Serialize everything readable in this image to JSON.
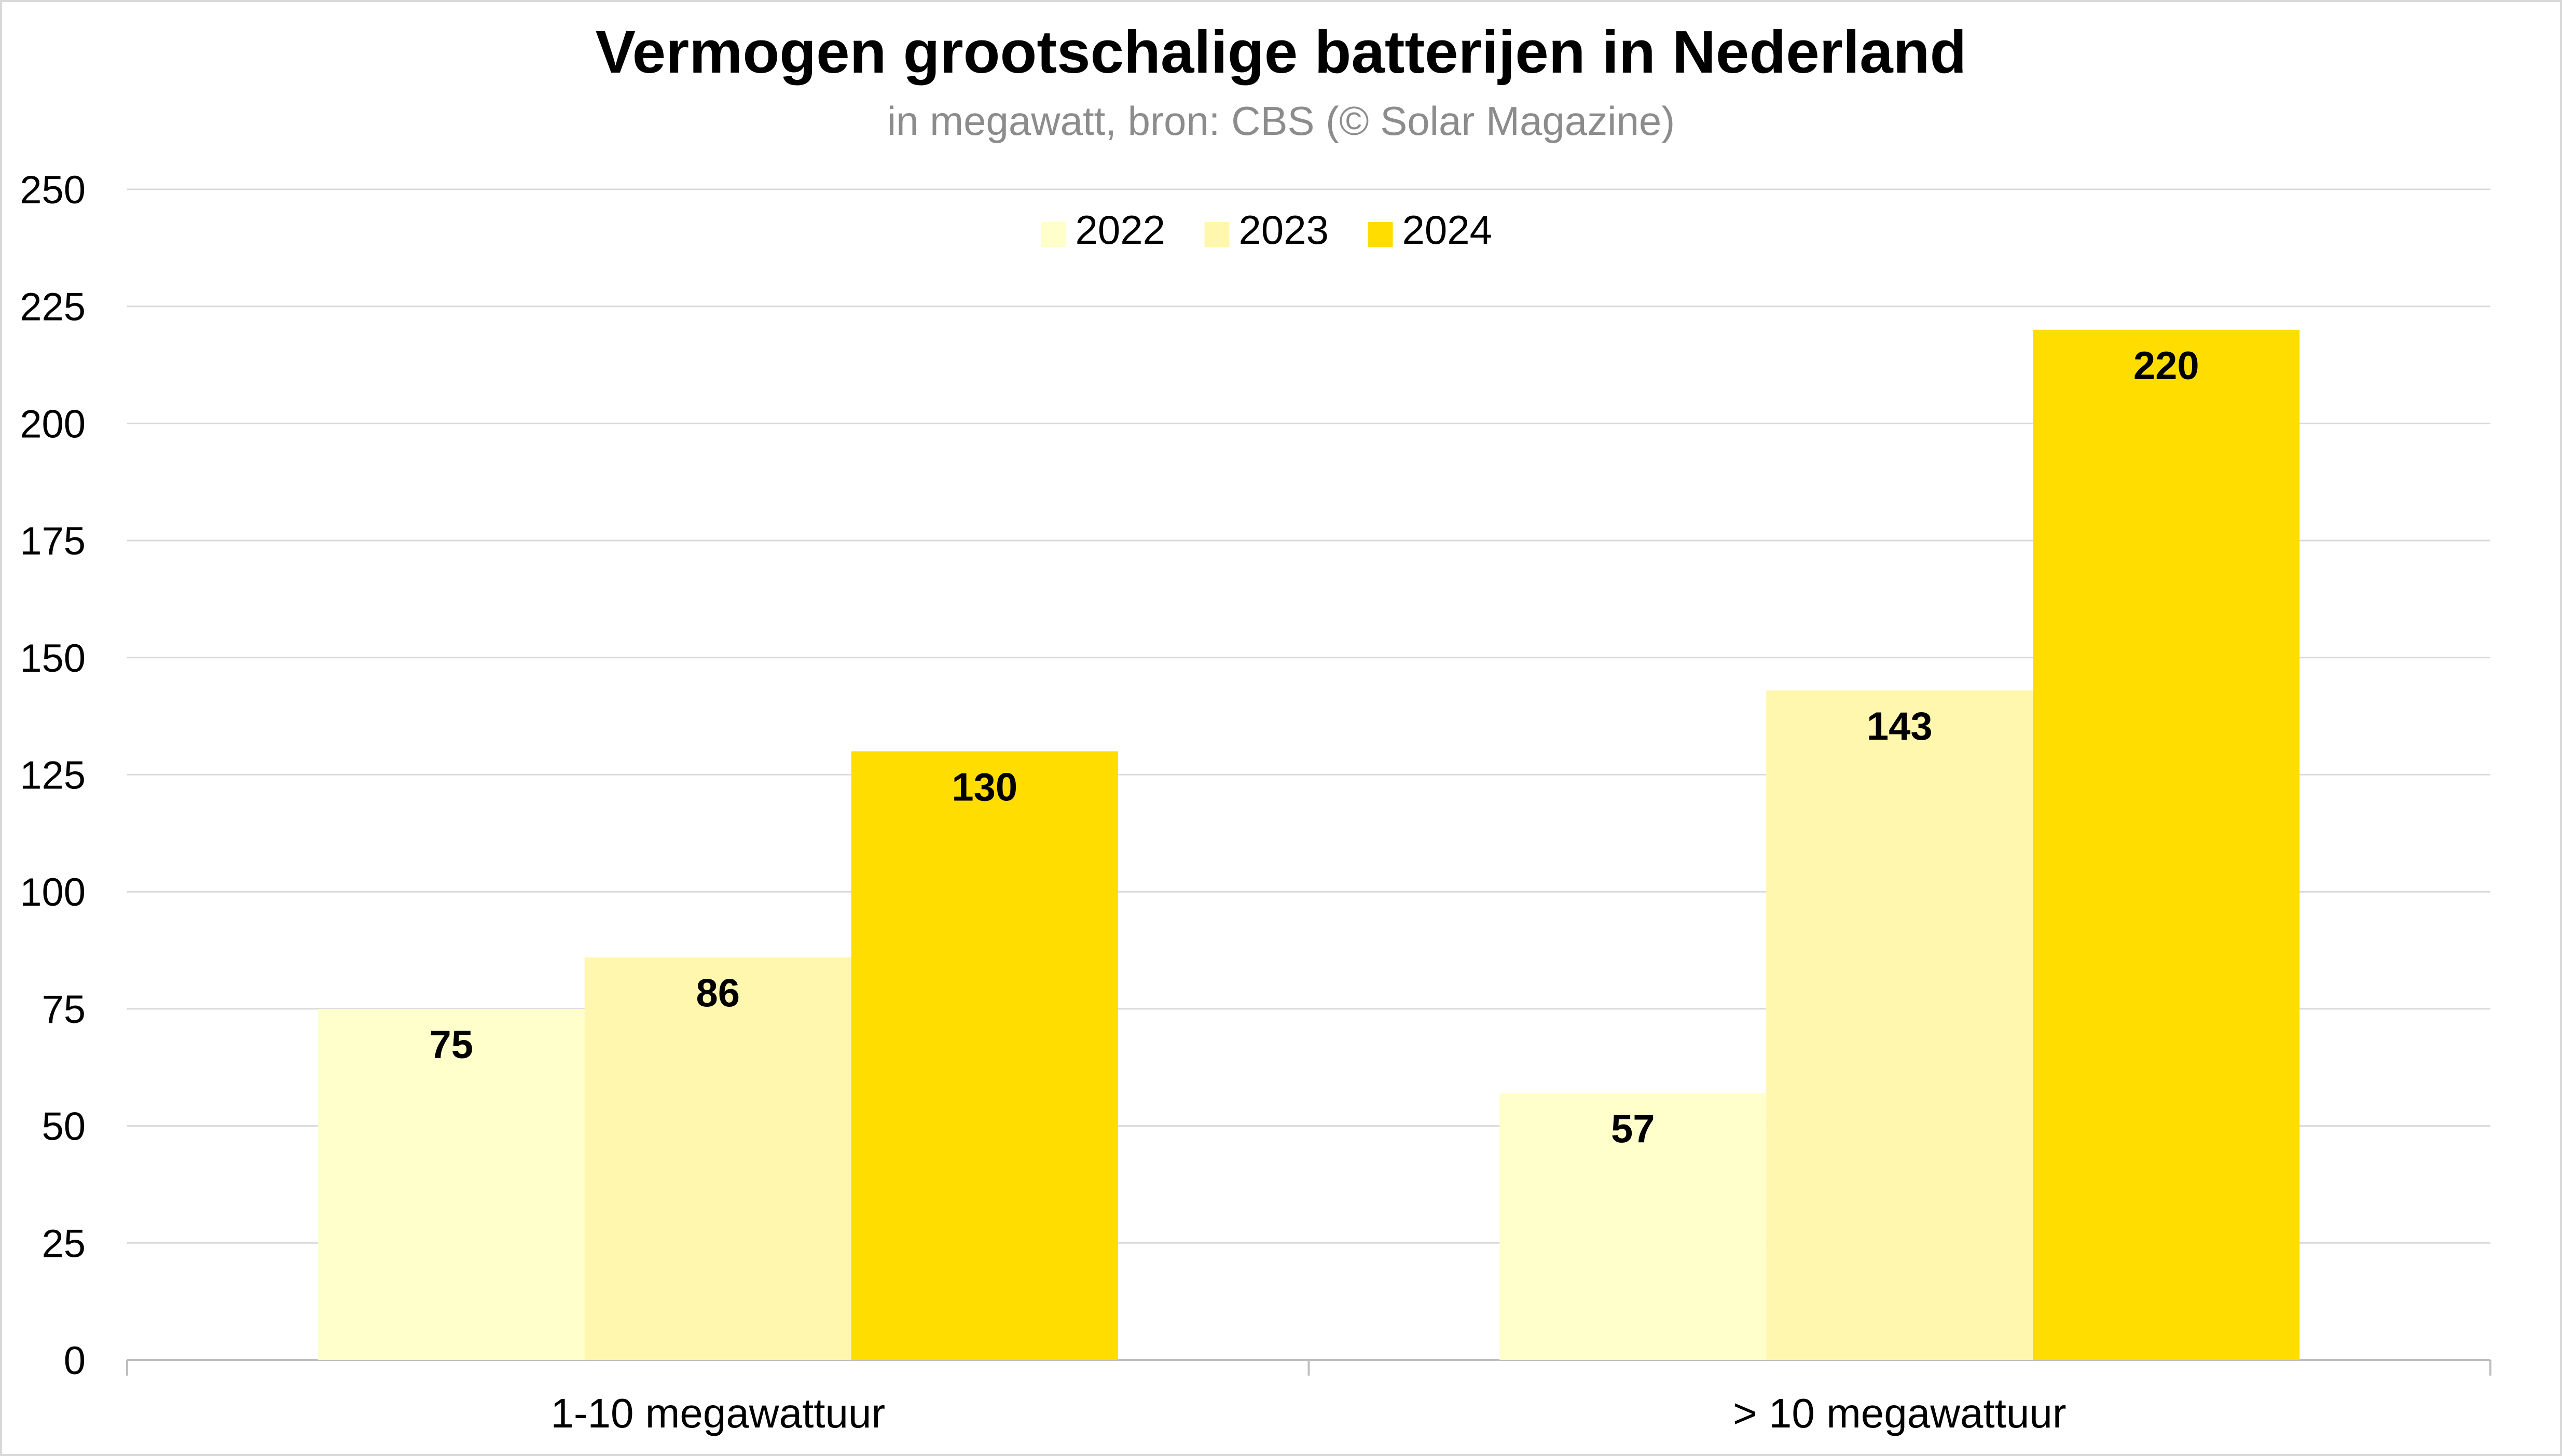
{
  "chart_data": {
    "type": "bar",
    "title": "Vermogen grootschalige batterijen in Nederland",
    "subtitle": "in megawatt, bron: CBS (© Solar Magazine)",
    "xlabel": "",
    "ylabel": "",
    "categories": [
      "1-10 megawattuur",
      "> 10 megawattuur"
    ],
    "series": [
      {
        "name": "2022",
        "values": [
          75,
          57
        ],
        "color": "#FFFFCC"
      },
      {
        "name": "2023",
        "values": [
          86,
          143
        ],
        "color": "#FFF7AE"
      },
      {
        "name": "2024",
        "values": [
          130,
          220
        ],
        "color": "#FFDD00"
      }
    ],
    "ylim": [
      0,
      250
    ],
    "yticks": [
      "0",
      "25",
      "50",
      "75",
      "100",
      "125",
      "150",
      "175",
      "200",
      "225",
      "250"
    ],
    "grid": true,
    "legend_position": "top-center",
    "data_labels": true
  }
}
